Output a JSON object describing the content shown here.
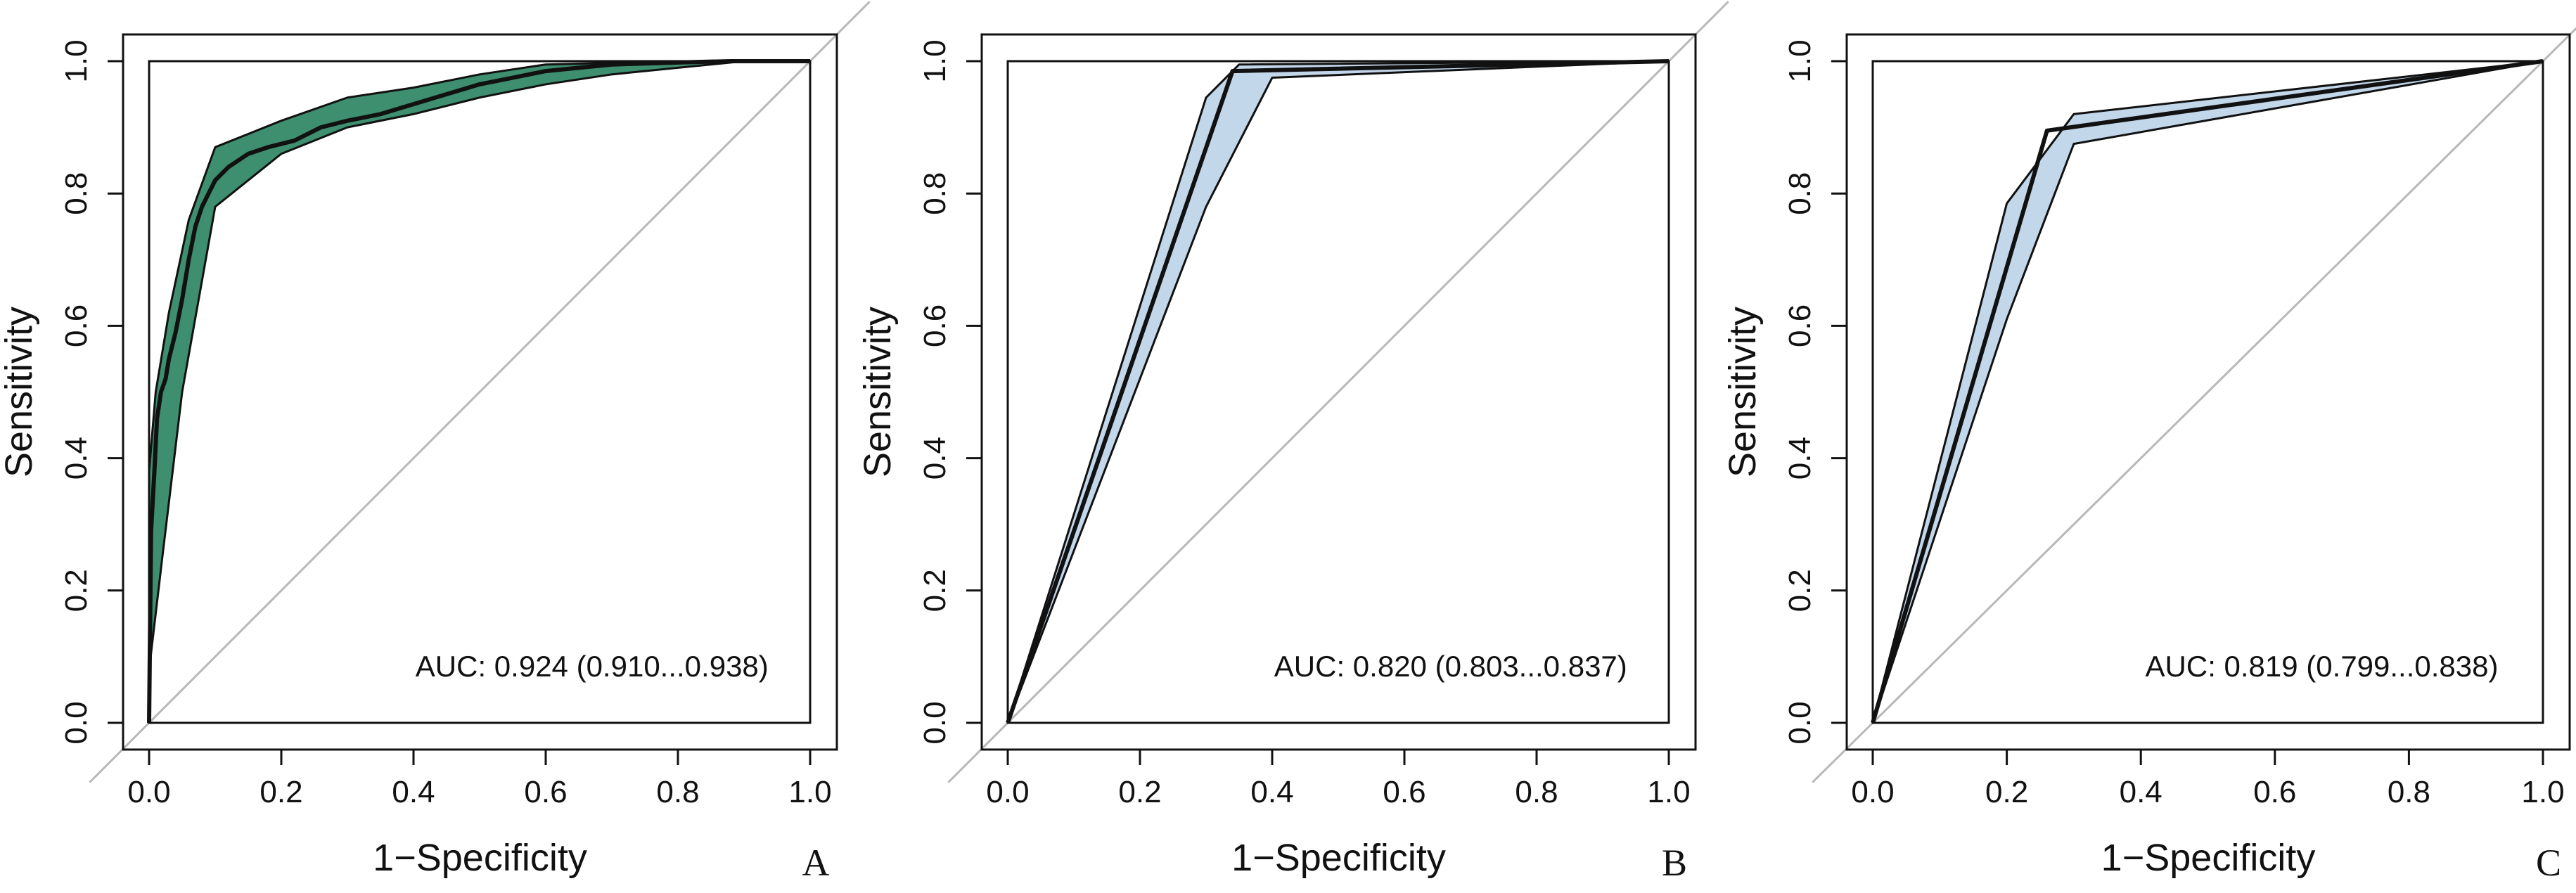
{
  "chart_data": [
    {
      "type": "line",
      "panel_label": "A",
      "xlabel": "1−Specificity",
      "ylabel": "Sensitivity",
      "xlim": [
        0,
        1
      ],
      "ylim": [
        0,
        1
      ],
      "xticks": [
        "0.0",
        "0.2",
        "0.4",
        "0.6",
        "0.8",
        "1.0"
      ],
      "yticks": [
        "0.0",
        "0.2",
        "0.4",
        "0.6",
        "0.8",
        "1.0"
      ],
      "auc_label": "AUC: 0.924 (0.910...0.938)",
      "band_color": "#3d8f6f",
      "curve": {
        "x": [
          0,
          0.003,
          0.008,
          0.012,
          0.018,
          0.025,
          0.03,
          0.04,
          0.05,
          0.06,
          0.07,
          0.08,
          0.09,
          0.1,
          0.12,
          0.15,
          0.18,
          0.22,
          0.26,
          0.3,
          0.35,
          0.4,
          0.45,
          0.5,
          0.55,
          0.6,
          0.65,
          0.7,
          0.8,
          0.88,
          1.0
        ],
        "y": [
          0,
          0.29,
          0.38,
          0.46,
          0.5,
          0.52,
          0.55,
          0.59,
          0.64,
          0.7,
          0.75,
          0.78,
          0.8,
          0.82,
          0.84,
          0.86,
          0.87,
          0.88,
          0.9,
          0.91,
          0.92,
          0.935,
          0.95,
          0.965,
          0.975,
          0.985,
          0.99,
          0.995,
          0.998,
          1.0,
          1.0
        ]
      },
      "ci_upper": {
        "x": [
          0,
          0.0,
          0.01,
          0.03,
          0.06,
          0.1,
          0.15,
          0.2,
          0.3,
          0.4,
          0.5,
          0.6,
          0.8,
          1.0
        ],
        "y": [
          0,
          0.38,
          0.5,
          0.62,
          0.76,
          0.87,
          0.89,
          0.91,
          0.945,
          0.96,
          0.98,
          0.995,
          1.0,
          1.0
        ]
      },
      "ci_lower": {
        "x": [
          0,
          0.0,
          0.02,
          0.05,
          0.1,
          0.2,
          0.3,
          0.4,
          0.5,
          0.6,
          0.7,
          0.8,
          0.9,
          1.0
        ],
        "y": [
          0,
          0.08,
          0.25,
          0.5,
          0.78,
          0.86,
          0.9,
          0.92,
          0.945,
          0.965,
          0.98,
          0.99,
          1.0,
          1.0
        ]
      }
    },
    {
      "type": "line",
      "panel_label": "B",
      "xlabel": "1−Specificity",
      "ylabel": "Sensitivity",
      "xlim": [
        0,
        1
      ],
      "ylim": [
        0,
        1
      ],
      "xticks": [
        "0.0",
        "0.2",
        "0.4",
        "0.6",
        "0.8",
        "1.0"
      ],
      "yticks": [
        "0.0",
        "0.2",
        "0.4",
        "0.6",
        "0.8",
        "1.0"
      ],
      "auc_label": "AUC: 0.820 (0.803...0.837)",
      "band_color": "#c3d7ea",
      "curve": {
        "x": [
          0,
          0.34,
          1.0
        ],
        "y": [
          0,
          0.985,
          1.0
        ]
      },
      "ci_upper": {
        "x": [
          0,
          0.3,
          0.35,
          1.0
        ],
        "y": [
          0,
          0.945,
          0.995,
          1.0
        ]
      },
      "ci_lower": {
        "x": [
          0,
          0.3,
          0.4,
          1.0
        ],
        "y": [
          0,
          0.78,
          0.975,
          1.0
        ]
      }
    },
    {
      "type": "line",
      "panel_label": "C",
      "xlabel": "1−Specificity",
      "ylabel": "Sensitivity",
      "xlim": [
        0,
        1
      ],
      "ylim": [
        0,
        1
      ],
      "xticks": [
        "0.0",
        "0.2",
        "0.4",
        "0.6",
        "0.8",
        "1.0"
      ],
      "yticks": [
        "0.0",
        "0.2",
        "0.4",
        "0.6",
        "0.8",
        "1.0"
      ],
      "auc_label": "AUC: 0.819 (0.799...0.838)",
      "band_color": "#c3d7ea",
      "curve": {
        "x": [
          0,
          0.26,
          1.0
        ],
        "y": [
          0,
          0.895,
          1.0
        ]
      },
      "ci_upper": {
        "x": [
          0,
          0.2,
          0.3,
          1.0
        ],
        "y": [
          0,
          0.785,
          0.92,
          1.0
        ]
      },
      "ci_lower": {
        "x": [
          0,
          0.2,
          0.3,
          1.0
        ],
        "y": [
          0,
          0.61,
          0.875,
          1.0
        ]
      }
    }
  ]
}
